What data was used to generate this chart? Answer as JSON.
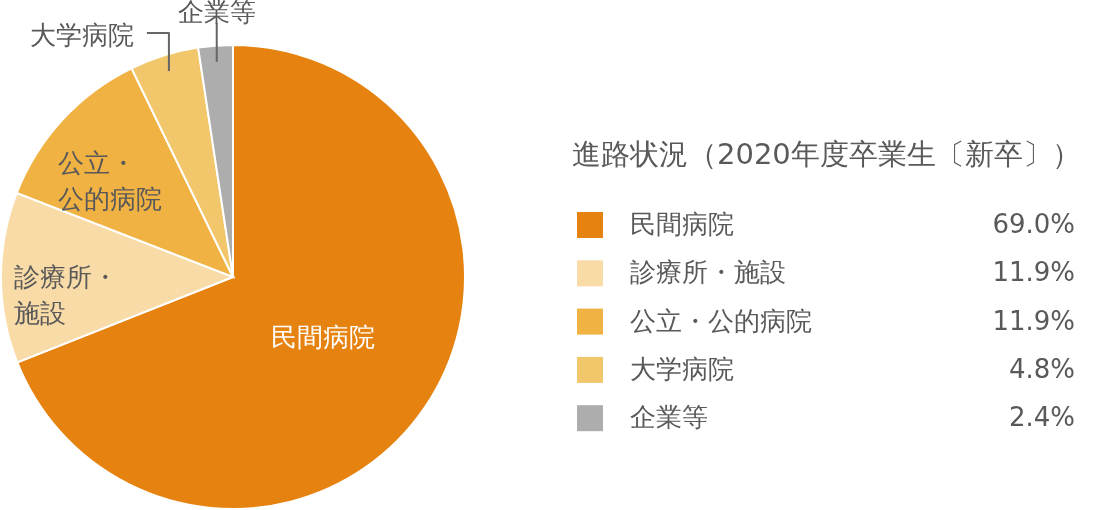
{
  "chart_data": {
    "type": "pie",
    "legend_title": "進路状況（2020年度卒業生〔新卒〕）",
    "categories": [
      "民間病院",
      "診療所・施設",
      "公立・公的病院",
      "大学病院",
      "企業等"
    ],
    "values": [
      69.0,
      11.9,
      11.9,
      4.8,
      2.4
    ],
    "colors": [
      "#e6820f",
      "#f8dba6",
      "#f0b243",
      "#f2c66b",
      "#adadad"
    ],
    "value_labels": [
      "69.0%",
      "11.9%",
      "11.9%",
      "4.8%",
      "2.4%"
    ],
    "legend": "right"
  }
}
